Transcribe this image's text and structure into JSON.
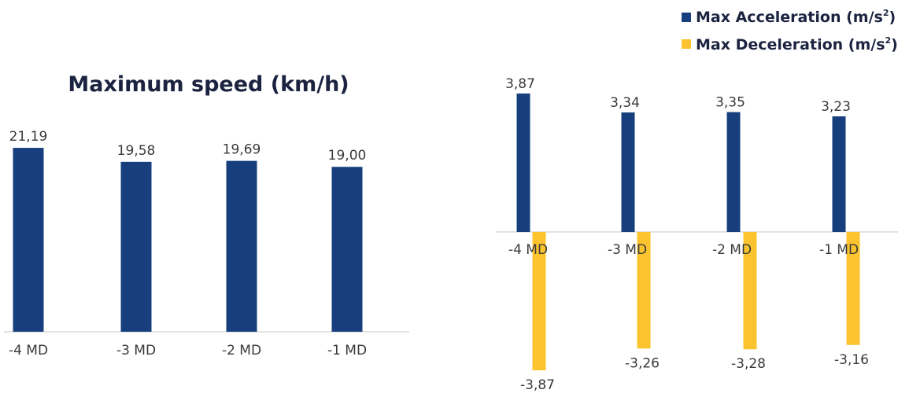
{
  "colors": {
    "acceleration": "#173f7d",
    "deceleration": "#fbc32d",
    "speed": "#173f7d",
    "axis": "#d9d9d9",
    "text": "#3a3a3a",
    "title": "#1b2340"
  },
  "chart_data": [
    {
      "type": "bar",
      "title": "Maximum speed (km/h)",
      "categories": [
        "-4 MD",
        "-3 MD",
        "-2 MD",
        "-1 MD"
      ],
      "series": [
        {
          "values": [
            21.19,
            19.58,
            19.69,
            19.0
          ],
          "labels": [
            "21,19",
            "19,58",
            "19,69",
            "19,00"
          ]
        }
      ],
      "ylim": [
        0,
        25
      ]
    },
    {
      "type": "bar",
      "categories": [
        "-4 MD",
        "-3 MD",
        "-2 MD",
        "-1 MD"
      ],
      "legend_position": "top-right",
      "legend": [
        {
          "base": "Max Acceleration (m/s",
          "sup": "2",
          "end": ")"
        },
        {
          "base": "Max Deceleration (m/s",
          "sup": "2",
          "end": ")"
        }
      ],
      "series": [
        {
          "name": "Max Acceleration (m/s2)",
          "values": [
            3.87,
            3.34,
            3.35,
            3.23
          ],
          "labels": [
            "3,87",
            "3,34",
            "3,35",
            "3,23"
          ]
        },
        {
          "name": "Max Deceleration (m/s2)",
          "values": [
            -3.87,
            -3.26,
            -3.28,
            -3.16
          ],
          "labels": [
            "-3,87",
            "-3,26",
            "-3,28",
            "-3,16"
          ]
        }
      ],
      "ylim": [
        -4.2,
        4.2
      ]
    }
  ]
}
